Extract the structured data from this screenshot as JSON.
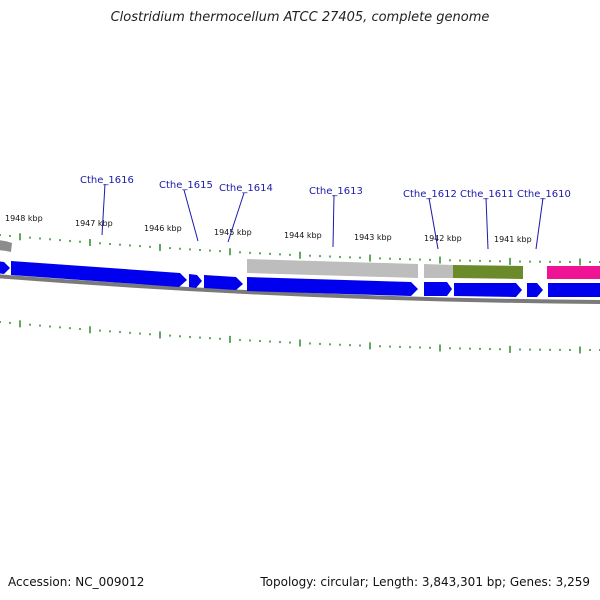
{
  "title": "Clostridium thermocellum ATCC 27405, complete genome",
  "footer": {
    "accession": "Accession: NC_009012",
    "topology": "Topology: circular; Length: 3,843,301 bp; Genes: 3,259"
  },
  "colors": {
    "cds": "#0000ee",
    "rna_grey": "#b8b8b8",
    "olive": "#6b8a2a",
    "magenta": "#ee1493",
    "tick": "#2a8a2a",
    "backbone": "#7a7a7a",
    "gene_label": "#1a1aaa"
  },
  "kbp_labels": [
    "1948 kbp",
    "1947 kbp",
    "1946 kbp",
    "1945 kbp",
    "1944 kbp",
    "1943 kbp",
    "1942 kbp",
    "1941 kbp"
  ],
  "gene_labels": [
    "Cthe_1616",
    "Cthe_1615",
    "Cthe_1614",
    "Cthe_1613",
    "Cthe_1612",
    "Cthe_1611",
    "Cthe_1610"
  ]
}
